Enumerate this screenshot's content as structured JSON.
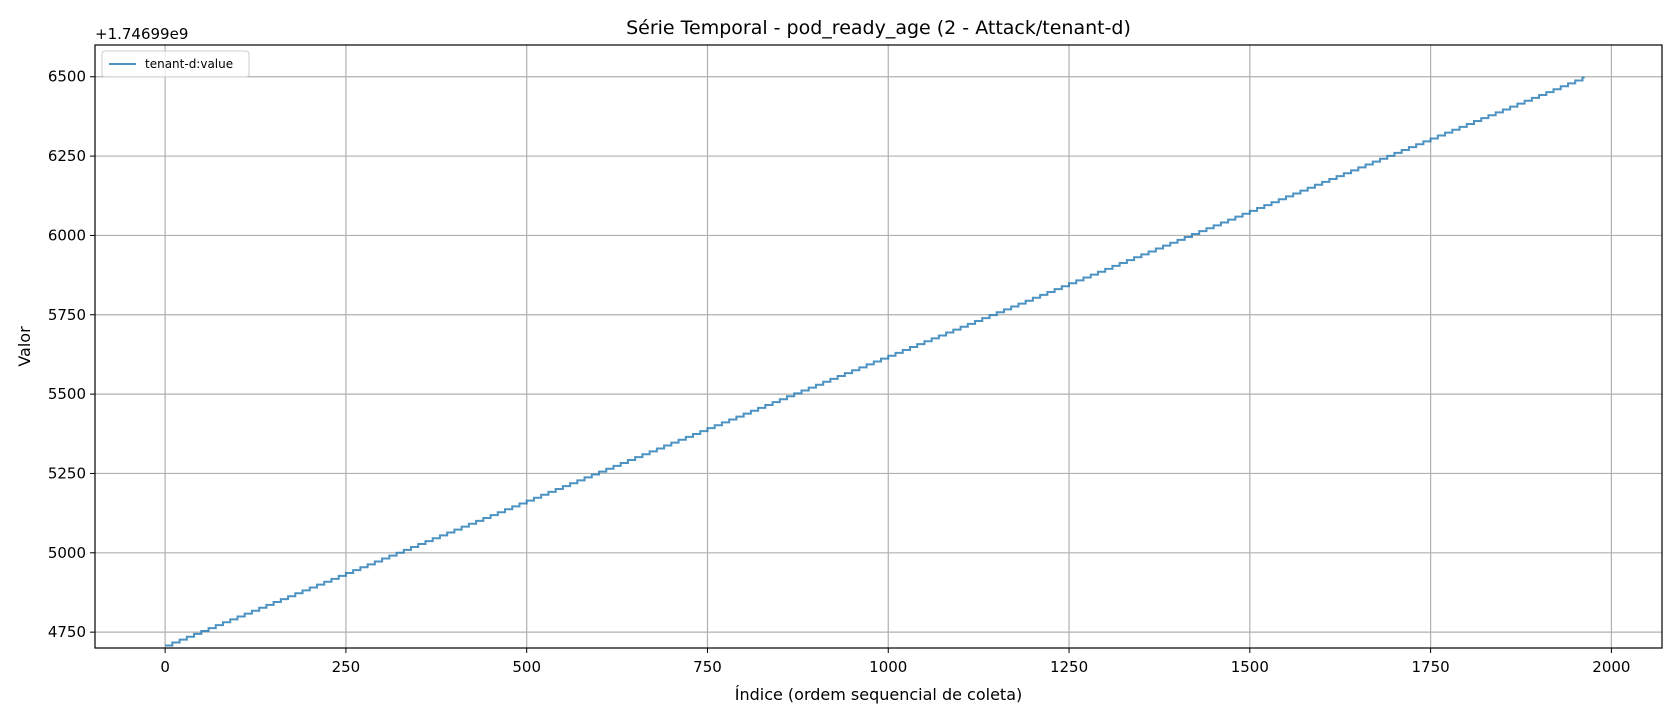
{
  "chart_data": {
    "type": "line",
    "title": "Série Temporal - pod_ready_age (2 - Attack/tenant-d)",
    "xlabel": "Índice (ordem sequencial de coleta)",
    "ylabel": "Valor",
    "y_offset_label": "+1.74699e9",
    "xlim": [
      -97,
      2070
    ],
    "ylim": [
      4700,
      6600
    ],
    "x_ticks": [
      0,
      250,
      500,
      750,
      1000,
      1250,
      1500,
      1750,
      2000
    ],
    "y_ticks": [
      4750,
      5000,
      5250,
      5500,
      5750,
      6000,
      6250,
      6500
    ],
    "grid": true,
    "legend_position": "top-left",
    "series": [
      {
        "name": "tenant-d:value",
        "color": "#1f77b4",
        "x": [
          0,
          1963
        ],
        "y": [
          4708,
          6500
        ],
        "style": "step",
        "step_every": 10
      }
    ]
  }
}
